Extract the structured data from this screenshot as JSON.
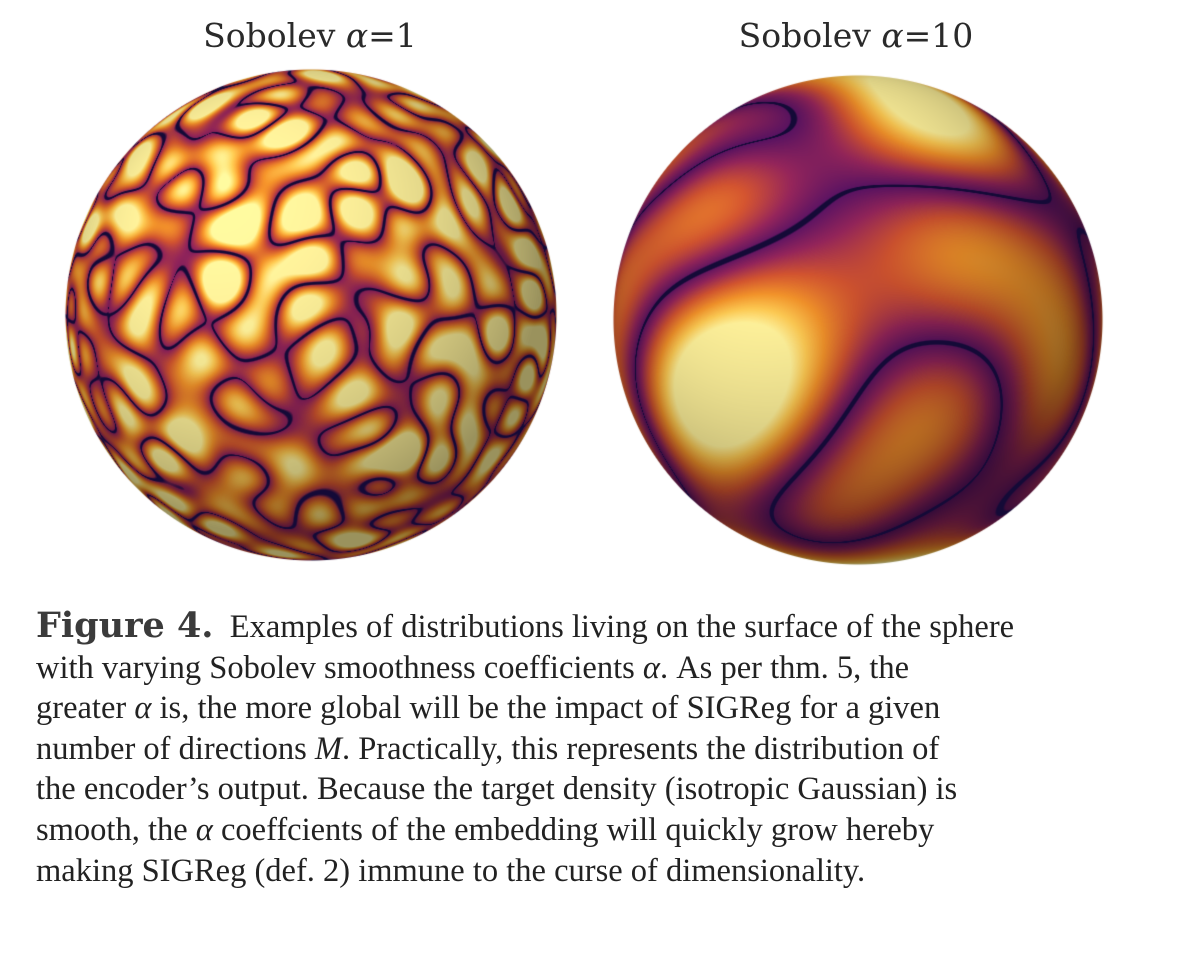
{
  "panels": [
    {
      "title_prefix": "Sobolev ",
      "symbol": "α",
      "title_suffix": "=1"
    },
    {
      "title_prefix": "Sobolev ",
      "symbol": "α",
      "title_suffix": "=10"
    }
  ],
  "caption": {
    "label": "Figure 4.",
    "lines": [
      [
        "Examples of distributions living on the surface of the sphere"
      ],
      [
        "with varying Sobolev smoothness coefficients ",
        {
          "i": "α"
        },
        ".  As per thm. 5, the"
      ],
      [
        "greater ",
        {
          "i": "α"
        },
        " is, the more global will be the impact of SIGReg for a given"
      ],
      [
        "number of directions ",
        {
          "i": "M"
        },
        ". Practically, this represents the distribution of"
      ],
      [
        "the encoder’s output. Because the target density (isotropic Gaussian) is"
      ],
      [
        "smooth, the ",
        {
          "i": "α"
        },
        " coeffcients of the embedding will quickly grow hereby"
      ],
      [
        "making SIGReg (def. 2) immune to the curse of dimensionality."
      ]
    ]
  },
  "colors": {
    "colormap": "inferno",
    "contour": "#140a3a",
    "text": "#222222"
  }
}
